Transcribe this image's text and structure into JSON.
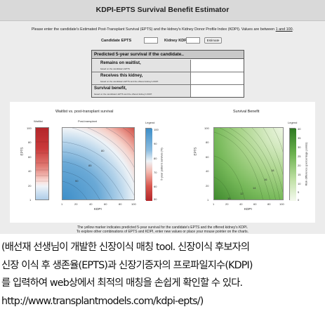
{
  "app": {
    "title": "KDPI-EPTS Survival Benefit Estimator",
    "instruction_before_link": "Please enter the candidate's Estimated Post-Transplant Survival (EPTS) and the kidney's Kidney Donor Profile Index (KDPI). Values are between ",
    "instruction_link": "1 and 100",
    "instruction_after_link": "."
  },
  "form": {
    "epts_label": "Candidate EPTS",
    "epts_value": "",
    "kdpi_label": "Kidney KDPI",
    "kdpi_value": "",
    "estimate_label": "Estimate"
  },
  "results": {
    "header": "Predicted 5-year survival if the candidate..",
    "rows": [
      {
        "label": "Remains on waitlist,",
        "sub": "based on the candidate's EPTS",
        "value": ""
      },
      {
        "label": "Receives this kidney,",
        "sub": "based on the candidate's EPTS and the offered kidney's KDPI",
        "value": ""
      },
      {
        "label": "Survival benefit,",
        "sub": "based on the candidate's EPTS and the offered kidney's KDPI",
        "value": ""
      }
    ]
  },
  "plot_left": {
    "title": "Waitlist vs. post-transplant survival",
    "waitlist_label": "Waitlist",
    "posttx_label": "Post-transplant",
    "legend_label": "Legend",
    "y_axis_label": "EPTS",
    "x_axis_label": "KDPI",
    "y_ticks": [
      "100",
      "80",
      "60",
      "40",
      "20",
      "1"
    ],
    "x_ticks": [
      "1",
      "20",
      "40",
      "60",
      "80",
      "100"
    ],
    "legend_ticks": [
      "100",
      "90",
      "80",
      "70",
      "60",
      "50"
    ],
    "legend_axis_label": "5-year patient survival (%)",
    "contour_labels": [
      "80",
      "85",
      "90"
    ]
  },
  "plot_right": {
    "title": "Survival Benefit",
    "legend_label": "Legend",
    "y_axis_label": "EPTS",
    "x_axis_label": "KDPI",
    "y_ticks": [
      "100",
      "80",
      "60",
      "40",
      "20",
      "1"
    ],
    "x_ticks": [
      "1",
      "20",
      "40",
      "60",
      "80",
      "100"
    ],
    "legend_ticks": [
      "40",
      "35",
      "30",
      "25",
      "20",
      "15",
      "10",
      "5",
      "0"
    ],
    "legend_axis_label": "Risk difference (percentage points)",
    "contour_labels": [
      "10",
      "12",
      "14",
      "16",
      "18"
    ]
  },
  "colors": {
    "waitlist_red": "#c32b2e",
    "posttx_blue": "#4d97c9",
    "benefit_green": "#3f8a2e",
    "banner_gray": "#d9d9d9"
  },
  "footer": {
    "line1": "The yellow marker indicates predicted 5-year survival for the candidate's EPTS and the offered kidney's KDPI.",
    "line2": "To explore other combinations of EPTS and KDPI, enter new values or place your mouse pointer on the charts."
  },
  "caption": {
    "lines": [
      "(배선재 선생님이 개발한 신장이식 매칭 tool. 신장이식 후보자의",
      "신장 이식 후 생존율(EPTS)과 신장기증자의 프로파일지수(KDPI)",
      "를 입력하여 web상에서 최적의 매칭을 손쉽게 확인할 수 있다.",
      "http://www.transplantmodels.com/kdpi-epts/)"
    ]
  }
}
